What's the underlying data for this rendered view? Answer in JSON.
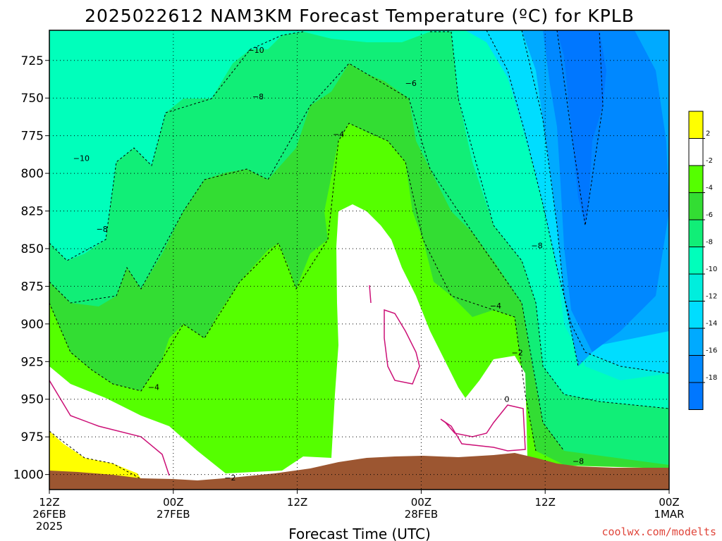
{
  "chart_data": {
    "type": "contour",
    "title": "2025022612 NAM3KM Forecast Temperature (ºC) for KPLB",
    "xlabel": "Forecast Time (UTC)",
    "ylabel": "",
    "y_scale": "pressure (inverted)",
    "ylim": [
      1010,
      705
    ],
    "y_ticks": [
      "725",
      "750",
      "775",
      "800",
      "825",
      "850",
      "875",
      "900",
      "925",
      "950",
      "975",
      "1000"
    ],
    "x_ticks": [
      {
        "hours": 0,
        "line1": "12Z",
        "line2": "26FEB",
        "line3": "2025"
      },
      {
        "hours": 12,
        "line1": "00Z",
        "line2": "27FEB",
        "line3": ""
      },
      {
        "hours": 24,
        "line1": "12Z",
        "line2": "",
        "line3": ""
      },
      {
        "hours": 36,
        "line1": "00Z",
        "line2": "28FEB",
        "line3": ""
      },
      {
        "hours": 48,
        "line1": "12Z",
        "line2": "",
        "line3": ""
      },
      {
        "hours": 60,
        "line1": "00Z",
        "line2": "1MAR",
        "line3": ""
      }
    ],
    "xlim_hours": [
      0,
      60
    ],
    "colorbar": {
      "levels": [
        "2",
        "-2",
        "-4",
        "-6",
        "-8",
        "-10",
        "-12",
        "-14",
        "-16",
        "-18"
      ],
      "colors": [
        "#ffff00",
        "#ffffff",
        "#55ff00",
        "#33dd33",
        "#11ee77",
        "#00ffbb",
        "#00eedd",
        "#00ddff",
        "#00aaff",
        "#0088ff",
        "#0077ff"
      ]
    },
    "contour_labels": [
      {
        "text": "−10",
        "hours": 20.0,
        "hPa": 718
      },
      {
        "text": "−8",
        "hours": 20.2,
        "hPa": 749
      },
      {
        "text": "−6",
        "hours": 35.0,
        "hPa": 740
      },
      {
        "text": "−4",
        "hours": 28.0,
        "hPa": 774
      },
      {
        "text": "−10",
        "hours": 3.1,
        "hPa": 790
      },
      {
        "text": "−8",
        "hours": 5.1,
        "hPa": 837
      },
      {
        "text": "−8",
        "hours": 47.2,
        "hPa": 848
      },
      {
        "text": "−4",
        "hours": 43.2,
        "hPa": 888
      },
      {
        "text": "−2",
        "hours": 45.3,
        "hPa": 919
      },
      {
        "text": "−4",
        "hours": 10.1,
        "hPa": 942
      },
      {
        "text": "0",
        "hours": 44.3,
        "hPa": 950
      },
      {
        "text": "−8",
        "hours": 51.2,
        "hPa": 991
      },
      {
        "text": "−2",
        "hours": 17.5,
        "hPa": 1002
      }
    ],
    "ground_color": "#9c5631",
    "freezing_line_color": "#cc1177",
    "grid": true
  },
  "credit": "coolwx.com/modelts"
}
